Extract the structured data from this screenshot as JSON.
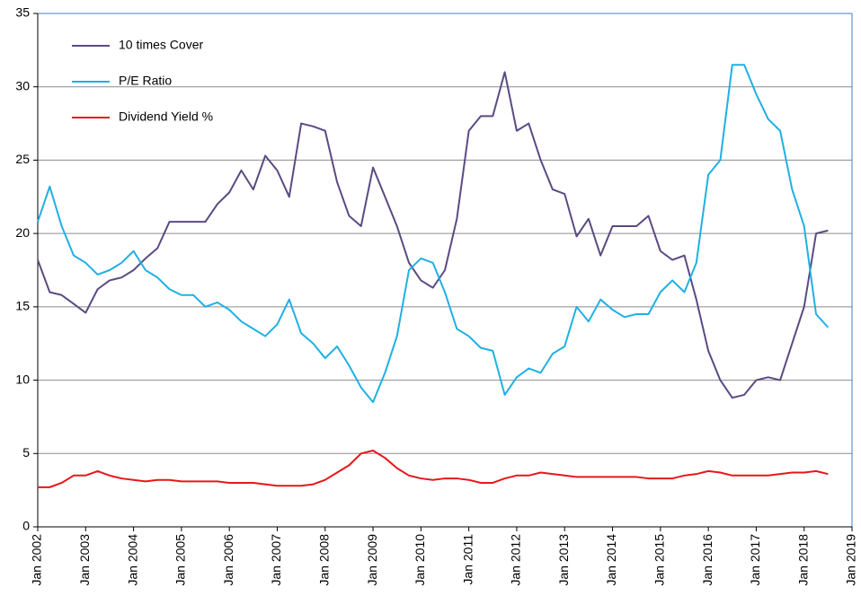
{
  "chart_data": {
    "type": "line",
    "x": [
      2002,
      2002.25,
      2002.5,
      2002.75,
      2003,
      2003.25,
      2003.5,
      2003.75,
      2004,
      2004.25,
      2004.5,
      2004.75,
      2005,
      2005.25,
      2005.5,
      2005.75,
      2006,
      2006.25,
      2006.5,
      2006.75,
      2007,
      2007.25,
      2007.5,
      2007.75,
      2008,
      2008.25,
      2008.5,
      2008.75,
      2009,
      2009.25,
      2009.5,
      2009.75,
      2010,
      2010.25,
      2010.5,
      2010.75,
      2011,
      2011.25,
      2011.5,
      2011.75,
      2012,
      2012.25,
      2012.5,
      2012.75,
      2013,
      2013.25,
      2013.5,
      2013.75,
      2014,
      2014.25,
      2014.5,
      2014.75,
      2015,
      2015.25,
      2015.5,
      2015.75,
      2016,
      2016.25,
      2016.5,
      2016.75,
      2017,
      2017.25,
      2017.5,
      2017.75,
      2018,
      2018.25,
      2018.5
    ],
    "series": [
      {
        "name": "10 times Cover",
        "color": "#5b4a82",
        "values": [
          18.2,
          16.0,
          15.8,
          15.2,
          14.6,
          16.2,
          16.8,
          17.0,
          17.5,
          18.3,
          19.0,
          20.8,
          20.8,
          20.8,
          20.8,
          22.0,
          22.8,
          24.3,
          23.0,
          25.3,
          24.3,
          22.5,
          27.5,
          27.3,
          27.0,
          23.5,
          21.2,
          20.5,
          24.5,
          22.5,
          20.5,
          18.0,
          16.8,
          16.3,
          17.5,
          21.0,
          27.0,
          28.0,
          28.0,
          31.0,
          27.0,
          27.5,
          25.0,
          23.0,
          22.7,
          19.8,
          21.0,
          18.5,
          20.5,
          20.5,
          20.5,
          21.2,
          18.8,
          18.2,
          18.5,
          15.5,
          12.0,
          10.0,
          8.8,
          9.0,
          10.0,
          10.2,
          10.0,
          12.5,
          15.0,
          20.0,
          20.2
        ]
      },
      {
        "name": "P/E Ratio",
        "color": "#1fb0e4",
        "values": [
          20.8,
          23.2,
          20.5,
          18.5,
          18.0,
          17.2,
          17.5,
          18.0,
          18.8,
          17.5,
          17.0,
          16.2,
          15.8,
          15.8,
          15.0,
          15.3,
          14.8,
          14.0,
          13.5,
          13.0,
          13.8,
          15.5,
          13.2,
          12.5,
          11.5,
          12.3,
          11.0,
          9.5,
          8.5,
          10.5,
          13.0,
          17.5,
          18.3,
          18.0,
          16.0,
          13.5,
          13.0,
          12.2,
          12.0,
          9.0,
          10.2,
          10.8,
          10.5,
          11.8,
          12.3,
          15.0,
          14.0,
          15.5,
          14.8,
          14.3,
          14.5,
          14.5,
          16.0,
          16.8,
          16.0,
          18.0,
          24.0,
          25.0,
          31.5,
          31.5,
          29.5,
          27.8,
          27.0,
          23.0,
          20.5,
          14.5,
          13.6
        ]
      },
      {
        "name": "Dividend Yield %",
        "color": "#e8161b",
        "values": [
          2.7,
          2.7,
          3.0,
          3.5,
          3.5,
          3.8,
          3.5,
          3.3,
          3.2,
          3.1,
          3.2,
          3.2,
          3.1,
          3.1,
          3.1,
          3.1,
          3.0,
          3.0,
          3.0,
          2.9,
          2.8,
          2.8,
          2.8,
          2.9,
          3.2,
          3.7,
          4.2,
          5.0,
          5.2,
          4.7,
          4.0,
          3.5,
          3.3,
          3.2,
          3.3,
          3.3,
          3.2,
          3.0,
          3.0,
          3.3,
          3.5,
          3.5,
          3.7,
          3.6,
          3.5,
          3.4,
          3.4,
          3.4,
          3.4,
          3.4,
          3.4,
          3.3,
          3.3,
          3.3,
          3.5,
          3.6,
          3.8,
          3.7,
          3.5,
          3.5,
          3.5,
          3.5,
          3.6,
          3.7,
          3.7,
          3.8,
          3.6
        ]
      }
    ],
    "xlim": [
      2002,
      2019
    ],
    "xticks": [
      {
        "value": 2002,
        "label": "Jan 2002"
      },
      {
        "value": 2003,
        "label": "Jan 2003"
      },
      {
        "value": 2004,
        "label": "Jan 2004"
      },
      {
        "value": 2005,
        "label": "Jan 2005"
      },
      {
        "value": 2006,
        "label": "Jan 2006"
      },
      {
        "value": 2007,
        "label": "Jan 2007"
      },
      {
        "value": 2008,
        "label": "Jan 2008"
      },
      {
        "value": 2009,
        "label": "Jan 2009"
      },
      {
        "value": 2010,
        "label": "Jan 2010"
      },
      {
        "value": 2011,
        "label": "Jan 2011"
      },
      {
        "value": 2012,
        "label": "Jan 2012"
      },
      {
        "value": 2013,
        "label": "Jan 2013"
      },
      {
        "value": 2014,
        "label": "Jan 2014"
      },
      {
        "value": 2015,
        "label": "Jan 2015"
      },
      {
        "value": 2016,
        "label": "Jan 2016"
      },
      {
        "value": 2017,
        "label": "Jan 2017"
      },
      {
        "value": 2018,
        "label": "Jan 2018"
      },
      {
        "value": 2019,
        "label": "Jan 2019"
      }
    ],
    "ylim": [
      0,
      35
    ],
    "yticks": [
      0,
      5,
      10,
      15,
      20,
      25,
      30,
      35
    ],
    "grid": true,
    "legend": "upper-left"
  }
}
